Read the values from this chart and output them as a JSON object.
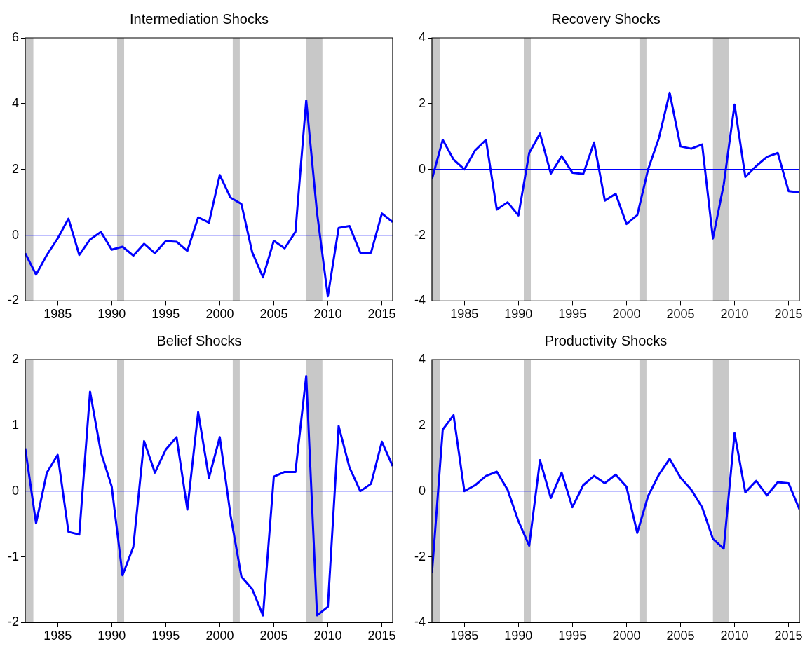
{
  "chart_data": [
    {
      "type": "line",
      "title": "Intermediation Shocks",
      "color": "#0000ff",
      "x": [
        1982,
        1983,
        1984,
        1985,
        1986,
        1987,
        1988,
        1989,
        1990,
        1991,
        1992,
        1993,
        1994,
        1995,
        1996,
        1997,
        1998,
        1999,
        2000,
        2001,
        2002,
        2003,
        2004,
        2005,
        2006,
        2007,
        2008,
        2009,
        2010,
        2011,
        2012,
        2013,
        2014,
        2015,
        2016
      ],
      "values": [
        -0.55,
        -1.2,
        -0.6,
        -0.1,
        0.5,
        -0.6,
        -0.13,
        0.1,
        -0.44,
        -0.35,
        -0.62,
        -0.26,
        -0.55,
        -0.18,
        -0.2,
        -0.48,
        0.54,
        0.38,
        1.83,
        1.14,
        0.95,
        -0.52,
        -1.28,
        -0.17,
        -0.4,
        0.1,
        4.1,
        0.68,
        -1.86,
        0.22,
        0.28,
        -0.53,
        -0.53,
        0.66,
        0.4
      ],
      "xlim": [
        1982,
        2016
      ],
      "xticks": [
        1985,
        1990,
        1995,
        2000,
        2005,
        2010,
        2015
      ],
      "ylim": [
        -2,
        6
      ],
      "yticks": [
        -2,
        0,
        2,
        4,
        6
      ],
      "grid": false,
      "ref_lines": [
        {
          "axis": "y",
          "value": 0,
          "color": "#0000ff"
        }
      ],
      "bands": [
        {
          "axis": "x",
          "from": 1982,
          "to": 1982.75,
          "color": "#c8c8c8"
        },
        {
          "axis": "x",
          "from": 1990.5,
          "to": 1991.15,
          "color": "#c8c8c8"
        },
        {
          "axis": "x",
          "from": 2001.2,
          "to": 2001.85,
          "color": "#c8c8c8"
        },
        {
          "axis": "x",
          "from": 2008,
          "to": 2009.5,
          "color": "#c8c8c8"
        }
      ]
    },
    {
      "type": "line",
      "title": "Recovery Shocks",
      "color": "#0000ff",
      "x": [
        1982,
        1983,
        1984,
        1985,
        1986,
        1987,
        1988,
        1989,
        1990,
        1991,
        1992,
        1993,
        1994,
        1995,
        1996,
        1997,
        1998,
        1999,
        2000,
        2001,
        2002,
        2003,
        2004,
        2005,
        2006,
        2007,
        2008,
        2009,
        2010,
        2011,
        2012,
        2013,
        2014,
        2015,
        2016
      ],
      "values": [
        -0.3,
        0.9,
        0.3,
        0,
        0.58,
        0.9,
        -1.22,
        -1.0,
        -1.4,
        0.5,
        1.09,
        -0.13,
        0.4,
        -0.1,
        -0.14,
        0.82,
        -0.95,
        -0.74,
        -1.66,
        -1.39,
        0.0,
        0.95,
        2.33,
        0.7,
        0.63,
        0.76,
        -2.1,
        -0.46,
        1.97,
        -0.23,
        0.1,
        0.38,
        0.5,
        -0.66,
        -0.7
      ],
      "xlim": [
        1982,
        2016
      ],
      "xticks": [
        1985,
        1990,
        1995,
        2000,
        2005,
        2010,
        2015
      ],
      "ylim": [
        -4,
        4
      ],
      "yticks": [
        -4,
        -2,
        0,
        2,
        4
      ],
      "grid": false,
      "ref_lines": [
        {
          "axis": "y",
          "value": 0,
          "color": "#0000ff"
        }
      ],
      "bands": [
        {
          "axis": "x",
          "from": 1982,
          "to": 1982.75,
          "color": "#c8c8c8"
        },
        {
          "axis": "x",
          "from": 1990.5,
          "to": 1991.15,
          "color": "#c8c8c8"
        },
        {
          "axis": "x",
          "from": 2001.2,
          "to": 2001.85,
          "color": "#c8c8c8"
        },
        {
          "axis": "x",
          "from": 2008,
          "to": 2009.5,
          "color": "#c8c8c8"
        }
      ]
    },
    {
      "type": "line",
      "title": "Belief Shocks",
      "color": "#0000ff",
      "x": [
        1982,
        1983,
        1984,
        1985,
        1986,
        1987,
        1988,
        1989,
        1990,
        1991,
        1992,
        1993,
        1994,
        1995,
        1996,
        1997,
        1998,
        1999,
        2000,
        2001,
        2002,
        2003,
        2004,
        2005,
        2006,
        2007,
        2008,
        2009,
        2010,
        2011,
        2012,
        2013,
        2014,
        2015,
        2016
      ],
      "values": [
        0.65,
        -0.49,
        0.28,
        0.55,
        -0.62,
        -0.66,
        1.51,
        0.59,
        0.07,
        -1.28,
        -0.85,
        0.76,
        0.28,
        0.63,
        0.82,
        -0.28,
        1.2,
        0.2,
        0.82,
        -0.37,
        -1.3,
        -1.49,
        -1.89,
        0.22,
        0.29,
        0.29,
        1.75,
        -1.89,
        -1.76,
        0.99,
        0.36,
        0.0,
        0.11,
        0.75,
        0.38
      ],
      "xlim": [
        1982,
        2016
      ],
      "xticks": [
        1985,
        1990,
        1995,
        2000,
        2005,
        2010,
        2015
      ],
      "ylim": [
        -2,
        2
      ],
      "yticks": [
        -2,
        -1,
        0,
        1,
        2
      ],
      "grid": false,
      "ref_lines": [
        {
          "axis": "y",
          "value": 0,
          "color": "#0000ff"
        }
      ],
      "bands": [
        {
          "axis": "x",
          "from": 1982,
          "to": 1982.75,
          "color": "#c8c8c8"
        },
        {
          "axis": "x",
          "from": 1990.5,
          "to": 1991.15,
          "color": "#c8c8c8"
        },
        {
          "axis": "x",
          "from": 2001.2,
          "to": 2001.85,
          "color": "#c8c8c8"
        },
        {
          "axis": "x",
          "from": 2008,
          "to": 2009.5,
          "color": "#c8c8c8"
        }
      ]
    },
    {
      "type": "line",
      "title": "Productivity Shocks",
      "color": "#0000ff",
      "x": [
        1982,
        1983,
        1984,
        1985,
        1986,
        1987,
        1988,
        1989,
        1990,
        1991,
        1992,
        1993,
        1994,
        1995,
        1996,
        1997,
        1998,
        1999,
        2000,
        2001,
        2002,
        2003,
        2004,
        2005,
        2006,
        2007,
        2008,
        2009,
        2010,
        2011,
        2012,
        2013,
        2014,
        2015,
        2016
      ],
      "values": [
        -2.5,
        1.87,
        2.31,
        0,
        0.18,
        0.46,
        0.59,
        0.04,
        -0.91,
        -1.66,
        0.94,
        -0.21,
        0.56,
        -0.49,
        0.18,
        0.46,
        0.24,
        0.5,
        0.13,
        -1.27,
        -0.15,
        0.5,
        0.98,
        0.41,
        0.04,
        -0.49,
        -1.45,
        -1.75,
        1.76,
        -0.04,
        0.31,
        -0.13,
        0.27,
        0.24,
        -0.55
      ],
      "xlim": [
        1982,
        2016
      ],
      "xticks": [
        1985,
        1990,
        1995,
        2000,
        2005,
        2010,
        2015
      ],
      "ylim": [
        -4,
        4
      ],
      "yticks": [
        -4,
        -2,
        0,
        2,
        4
      ],
      "grid": false,
      "ref_lines": [
        {
          "axis": "y",
          "value": 0,
          "color": "#0000ff"
        }
      ],
      "bands": [
        {
          "axis": "x",
          "from": 1982,
          "to": 1982.75,
          "color": "#c8c8c8"
        },
        {
          "axis": "x",
          "from": 1990.5,
          "to": 1991.15,
          "color": "#c8c8c8"
        },
        {
          "axis": "x",
          "from": 2001.2,
          "to": 2001.85,
          "color": "#c8c8c8"
        },
        {
          "axis": "x",
          "from": 2008,
          "to": 2009.5,
          "color": "#c8c8c8"
        }
      ]
    }
  ]
}
